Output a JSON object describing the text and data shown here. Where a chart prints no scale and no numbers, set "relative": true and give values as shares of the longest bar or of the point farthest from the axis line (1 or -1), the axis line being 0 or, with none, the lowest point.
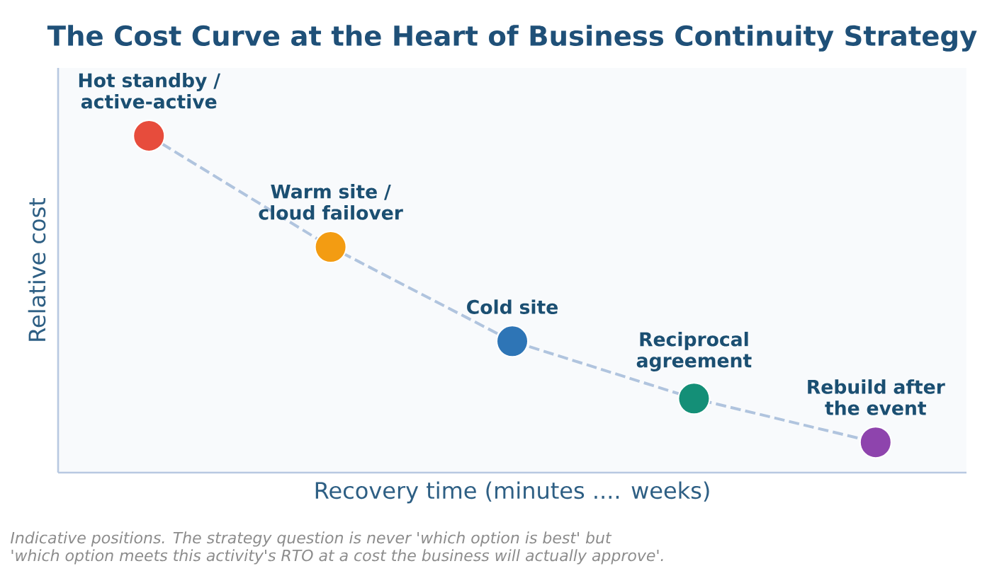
{
  "chart_data": {
    "type": "line",
    "title": "The Cost Curve at the Heart of Business Continuity Strategy",
    "xlabel": "Recovery time (minutes .... weeks)",
    "ylabel": "Relative cost",
    "relative": true,
    "marker": "circle",
    "line_style": "dashed",
    "categories": [
      null,
      null,
      null,
      null,
      null
    ],
    "series": [
      {
        "color": "#b0c4de",
        "colors": [
          "#e74c3c",
          "#f39c12",
          "#2e75b6",
          "#148f77",
          "#8e44ad"
        ],
        "values": [
          1,
          0.67,
          0.39,
          0.22,
          0.09
        ]
      }
    ],
    "annotations": [
      {
        "text": "Hot standby / active-active",
        "y": 1
      },
      {
        "text": "Warm site / cloud failover",
        "y": 0.67
      },
      {
        "text": "Cold site",
        "y": 0.39
      },
      {
        "text": "Reciprocal agreement",
        "y": 0.22
      },
      {
        "text": "Rebuild after the event",
        "y": 0.09
      },
      "Indicative positions. The strategy question is never 'which option is best' but",
      "'which option meets this activity's RTO at a cost the business will actually approve'."
    ]
  }
}
